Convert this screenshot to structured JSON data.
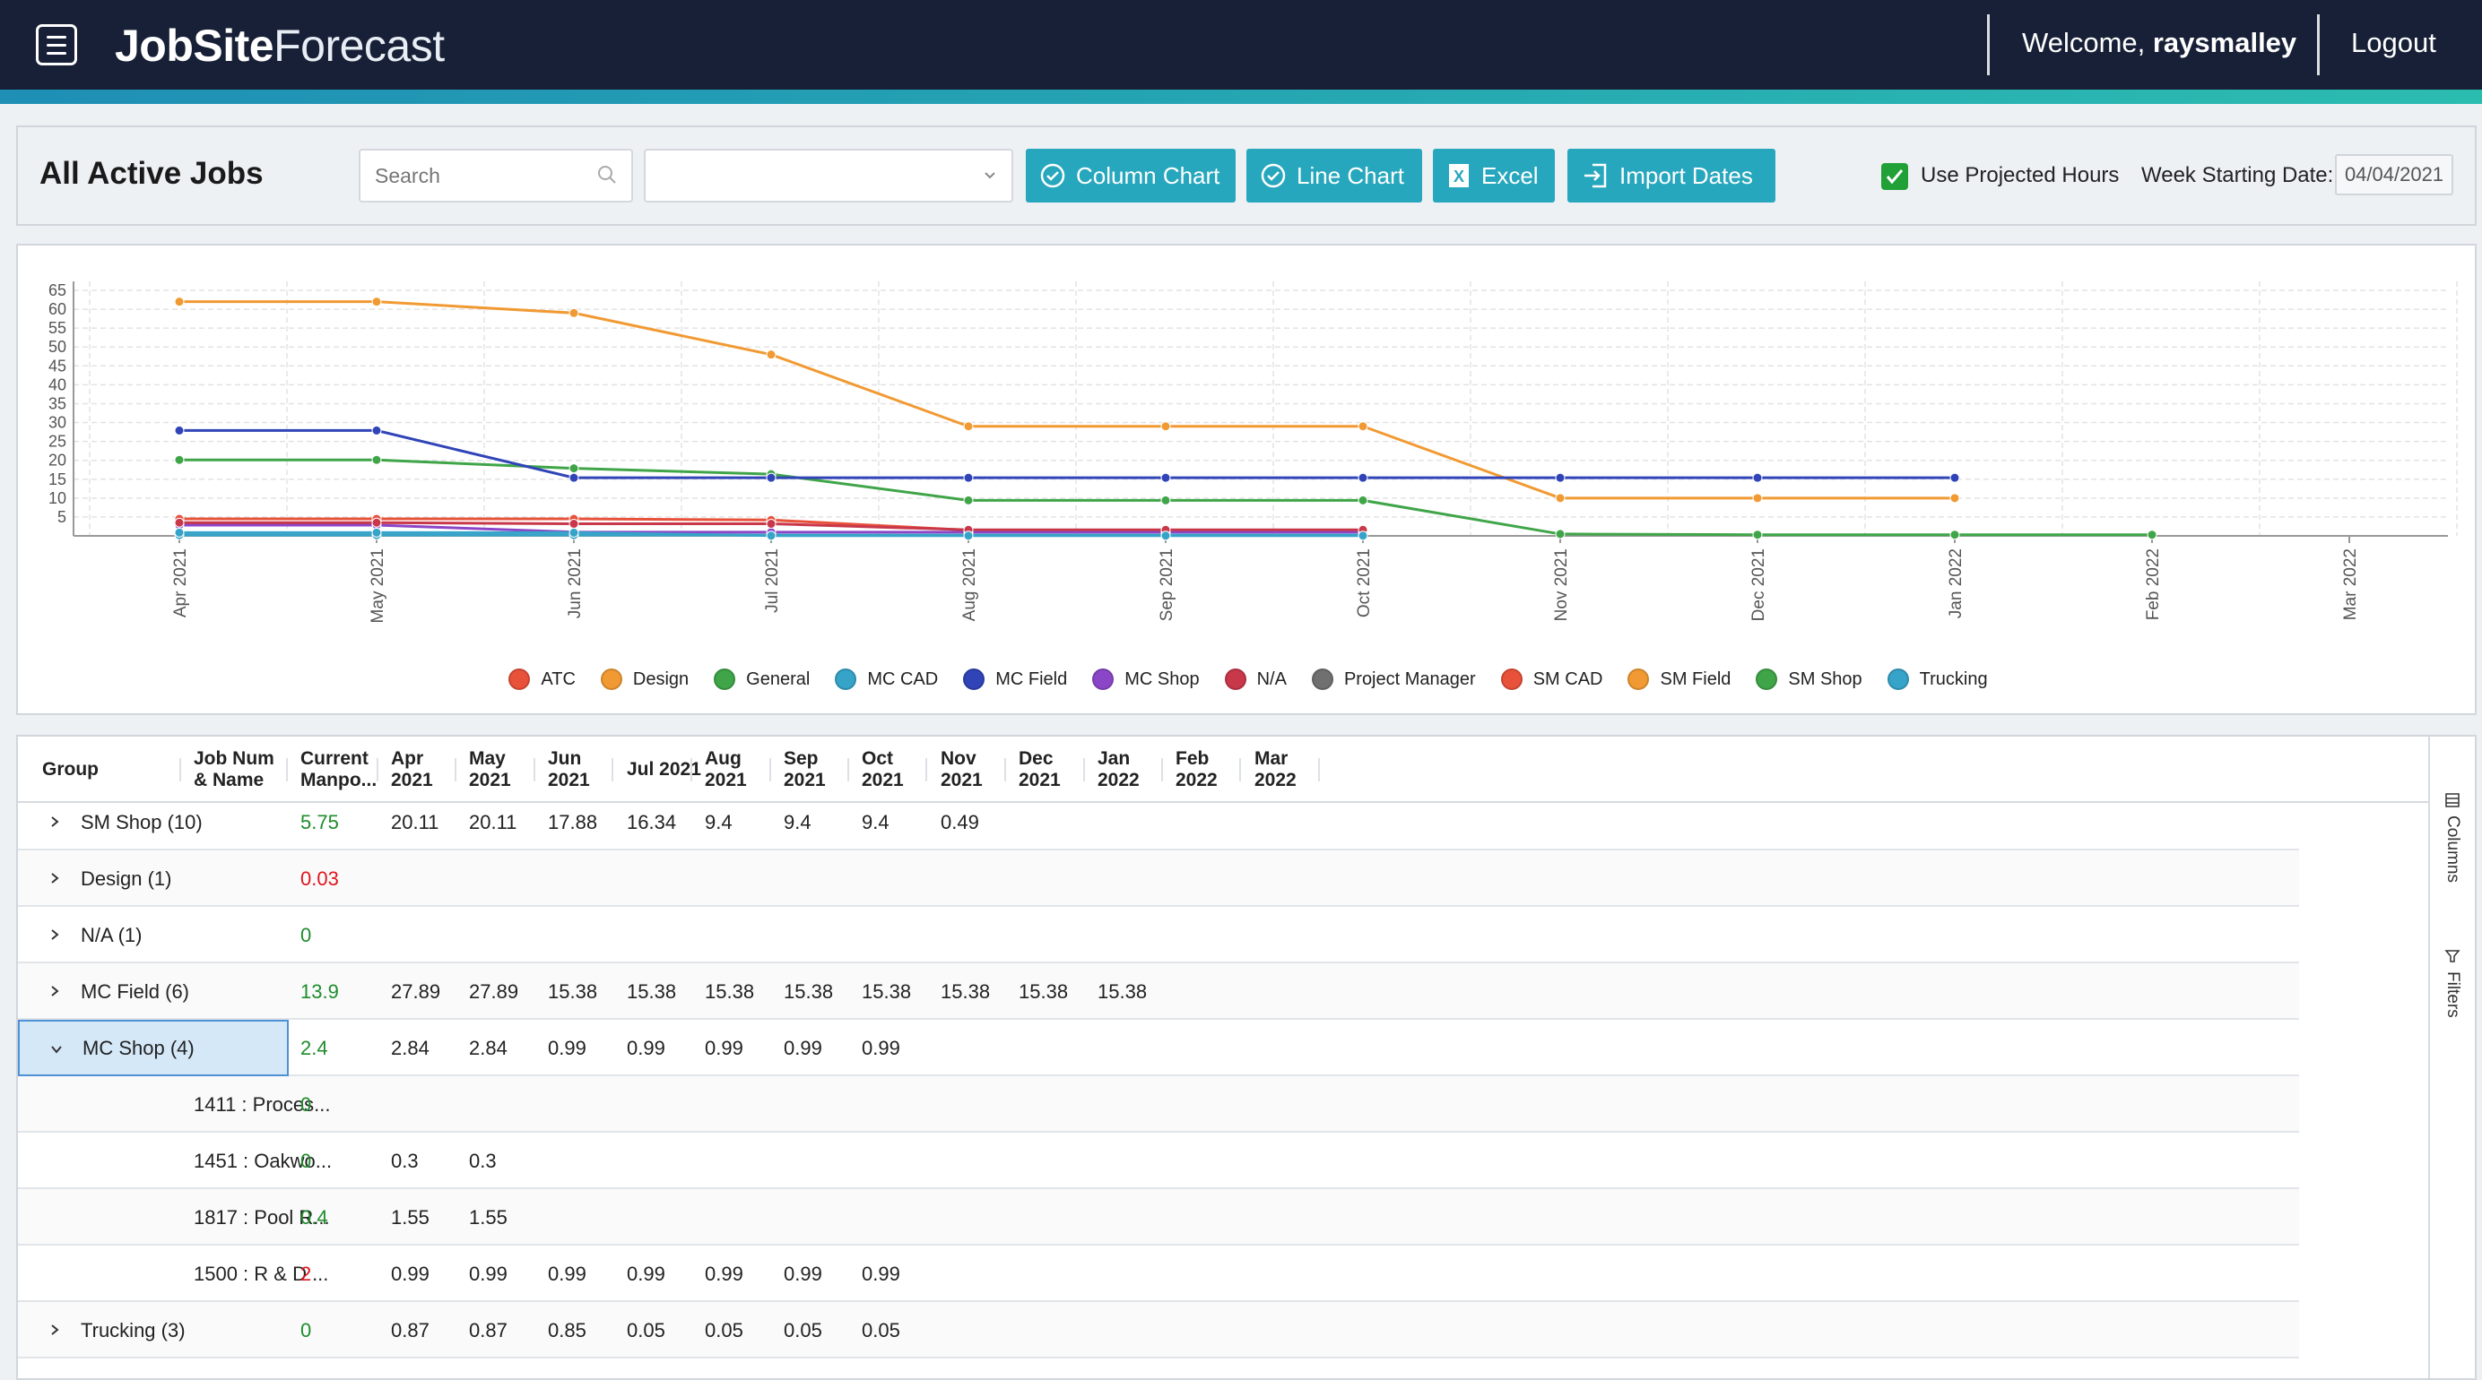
{
  "header": {
    "brand_bold": "JobSite",
    "brand_light": "Forecast",
    "welcome_prefix": "Welcome, ",
    "username": "raysmalley",
    "logout": "Logout"
  },
  "toolbar": {
    "title": "All Active Jobs",
    "search_placeholder": "Search",
    "select_value": "",
    "buttons": {
      "column_chart": "Column Chart",
      "line_chart": "Line Chart",
      "excel": "Excel",
      "import_dates": "Import Dates"
    },
    "use_projected_hours": "Use Projected Hours",
    "use_projected_checked": true,
    "week_label": "Week Starting Date:",
    "week_value": "04/04/2021"
  },
  "chart_data": {
    "type": "line",
    "x": [
      "Apr 2021",
      "May 2021",
      "Jun 2021",
      "Jul 2021",
      "Aug 2021",
      "Sep 2021",
      "Oct 2021",
      "Nov 2021",
      "Dec 2021",
      "Jan 2022",
      "Feb 2022",
      "Mar 2022"
    ],
    "y_ticks": [
      5,
      10,
      15,
      20,
      25,
      30,
      35,
      40,
      45,
      50,
      55,
      60,
      65
    ],
    "ylim": [
      0,
      65
    ],
    "grid": true,
    "legend_position": "bottom",
    "series": [
      {
        "name": "ATC",
        "color": "#e8513a",
        "values": [
          4.5,
          4.5,
          4.5,
          4.2,
          1.5,
          1.5,
          1.5,
          null,
          null,
          null,
          null,
          null
        ]
      },
      {
        "name": "Design",
        "color": "#f19a33",
        "values": [
          62,
          62,
          59,
          48,
          29,
          29,
          29,
          10,
          10,
          10,
          null,
          null
        ]
      },
      {
        "name": "General",
        "color": "#3fa548",
        "values": [
          20.11,
          20.11,
          17.88,
          16.34,
          9.4,
          9.4,
          9.4,
          0.49,
          0.3,
          0.3,
          0.3,
          null
        ]
      },
      {
        "name": "MC CAD",
        "color": "#36a3c9",
        "values": [
          0.2,
          0.2,
          0.2,
          0.2,
          0.2,
          0.2,
          0.2,
          null,
          null,
          null,
          null,
          null
        ]
      },
      {
        "name": "MC Field",
        "color": "#3044b8",
        "values": [
          27.89,
          27.89,
          15.38,
          15.38,
          15.38,
          15.38,
          15.38,
          15.38,
          15.38,
          15.38,
          null,
          null
        ]
      },
      {
        "name": "MC Shop",
        "color": "#8b46c7",
        "values": [
          2.84,
          2.84,
          0.99,
          0.99,
          0.99,
          0.99,
          0.99,
          null,
          null,
          null,
          null,
          null
        ]
      },
      {
        "name": "N/A",
        "color": "#c8384a",
        "values": [
          3.5,
          3.5,
          3.2,
          3.2,
          1.6,
          1.6,
          1.6,
          null,
          null,
          null,
          null,
          null
        ]
      },
      {
        "name": "Project Manager",
        "color": "#707070",
        "values": [
          null,
          null,
          null,
          null,
          null,
          null,
          null,
          null,
          null,
          null,
          null,
          null
        ]
      },
      {
        "name": "SM CAD",
        "color": "#e8513a",
        "values": [
          null,
          null,
          null,
          null,
          null,
          null,
          null,
          null,
          null,
          null,
          null,
          null
        ]
      },
      {
        "name": "SM Field",
        "color": "#f19a33",
        "values": [
          null,
          null,
          null,
          null,
          null,
          null,
          null,
          null,
          null,
          null,
          null,
          null
        ]
      },
      {
        "name": "SM Shop",
        "color": "#3fa548",
        "values": [
          null,
          null,
          null,
          null,
          null,
          null,
          null,
          null,
          null,
          null,
          null,
          null
        ]
      },
      {
        "name": "Trucking",
        "color": "#36a3c9",
        "values": [
          0.87,
          0.87,
          0.85,
          0.05,
          0.05,
          0.05,
          0.05,
          null,
          null,
          null,
          null,
          null
        ]
      }
    ]
  },
  "grid": {
    "headers": [
      "Group",
      "Job Num & Name",
      "Current Manpo...",
      "Apr 2021",
      "May 2021",
      "Jun 2021",
      "Jul 2021",
      "Aug 2021",
      "Sep 2021",
      "Oct 2021",
      "Nov 2021",
      "Dec 2021",
      "Jan 2022",
      "Feb 2022",
      "Mar 2022"
    ],
    "side_tabs": [
      "Columns",
      "Filters"
    ],
    "rows": [
      {
        "group": "SM Shop (10)",
        "expanded": false,
        "job": "",
        "current": "5.75",
        "current_color": "green",
        "values": [
          "20.11",
          "20.11",
          "17.88",
          "16.34",
          "9.4",
          "9.4",
          "9.4",
          "0.49",
          "",
          "",
          "",
          ""
        ]
      },
      {
        "group": "Design (1)",
        "expanded": false,
        "job": "",
        "current": "0.03",
        "current_color": "red",
        "values": [
          "",
          "",
          "",
          "",
          "",
          "",
          "",
          "",
          "",
          "",
          "",
          ""
        ]
      },
      {
        "group": "N/A (1)",
        "expanded": false,
        "job": "",
        "current": "0",
        "current_color": "green",
        "values": [
          "",
          "",
          "",
          "",
          "",
          "",
          "",
          "",
          "",
          "",
          "",
          ""
        ]
      },
      {
        "group": "MC Field (6)",
        "expanded": false,
        "job": "",
        "current": "13.9",
        "current_color": "green",
        "values": [
          "27.89",
          "27.89",
          "15.38",
          "15.38",
          "15.38",
          "15.38",
          "15.38",
          "15.38",
          "15.38",
          "15.38",
          "",
          ""
        ]
      },
      {
        "group": "MC Shop (4)",
        "expanded": true,
        "selected": true,
        "job": "",
        "current": "2.4",
        "current_color": "green",
        "values": [
          "2.84",
          "2.84",
          "0.99",
          "0.99",
          "0.99",
          "0.99",
          "0.99",
          "",
          "",
          "",
          "",
          ""
        ]
      },
      {
        "group": "",
        "child": true,
        "job": "1411 : Proces...",
        "current": "0",
        "current_color": "green",
        "values": [
          "",
          "",
          "",
          "",
          "",
          "",
          "",
          "",
          "",
          "",
          "",
          ""
        ]
      },
      {
        "group": "",
        "child": true,
        "job": "1451 : Oakwo...",
        "current": "0",
        "current_color": "green",
        "values": [
          "0.3",
          "0.3",
          "",
          "",
          "",
          "",
          "",
          "",
          "",
          "",
          "",
          ""
        ]
      },
      {
        "group": "",
        "child": true,
        "job": "1817 : Pool R...",
        "current": "0.4",
        "current_color": "green",
        "values": [
          "1.55",
          "1.55",
          "",
          "",
          "",
          "",
          "",
          "",
          "",
          "",
          "",
          ""
        ]
      },
      {
        "group": "",
        "child": true,
        "job": "1500 : R & D ...",
        "current": "2",
        "current_color": "red",
        "values": [
          "0.99",
          "0.99",
          "0.99",
          "0.99",
          "0.99",
          "0.99",
          "0.99",
          "",
          "",
          "",
          "",
          ""
        ]
      },
      {
        "group": "Trucking (3)",
        "expanded": false,
        "job": "",
        "current": "0",
        "current_color": "green",
        "values": [
          "0.87",
          "0.87",
          "0.85",
          "0.05",
          "0.05",
          "0.05",
          "0.05",
          "",
          "",
          "",
          "",
          ""
        ]
      }
    ]
  }
}
